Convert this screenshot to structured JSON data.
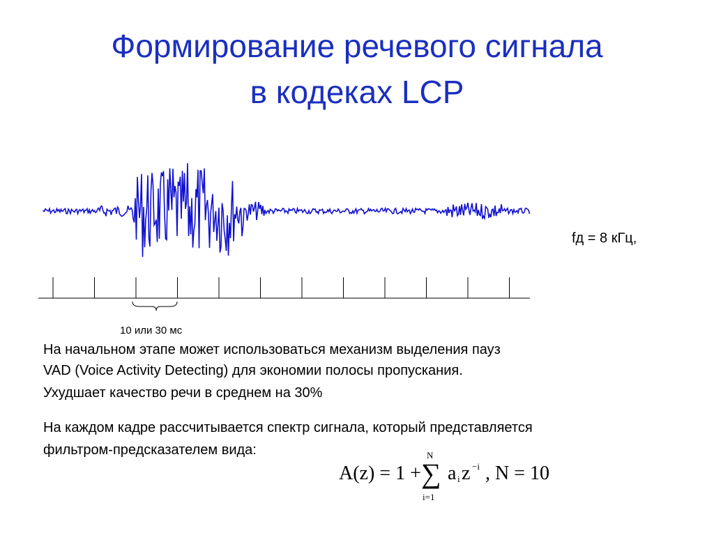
{
  "title": {
    "line1": "Формирование речевого сигнала",
    "line2": "в кодеках LCP"
  },
  "sampling_rate": "fд = 8 кГц,",
  "frame_label": "10 или 30 мс",
  "paragraph1": [
    "На начальном этапе может использоваться механизм выделения пауз",
    "VAD (Voice Activity Detecting) для экономии полосы пропускания.",
    "Ухудшает качество речи в среднем на 30%"
  ],
  "paragraph2": [
    "На каждом кадре рассчитывается спектр сигнала, который представляется",
    "фильтром-предсказателем вида:"
  ],
  "formula": {
    "lhs": "A(z) = 1 +",
    "sum": "∑",
    "upper": "N",
    "lower": "i=1",
    "a": "a",
    "a_sub": "i",
    "z": "z",
    "z_sup": "−i",
    "tail": ", N = 10"
  }
}
